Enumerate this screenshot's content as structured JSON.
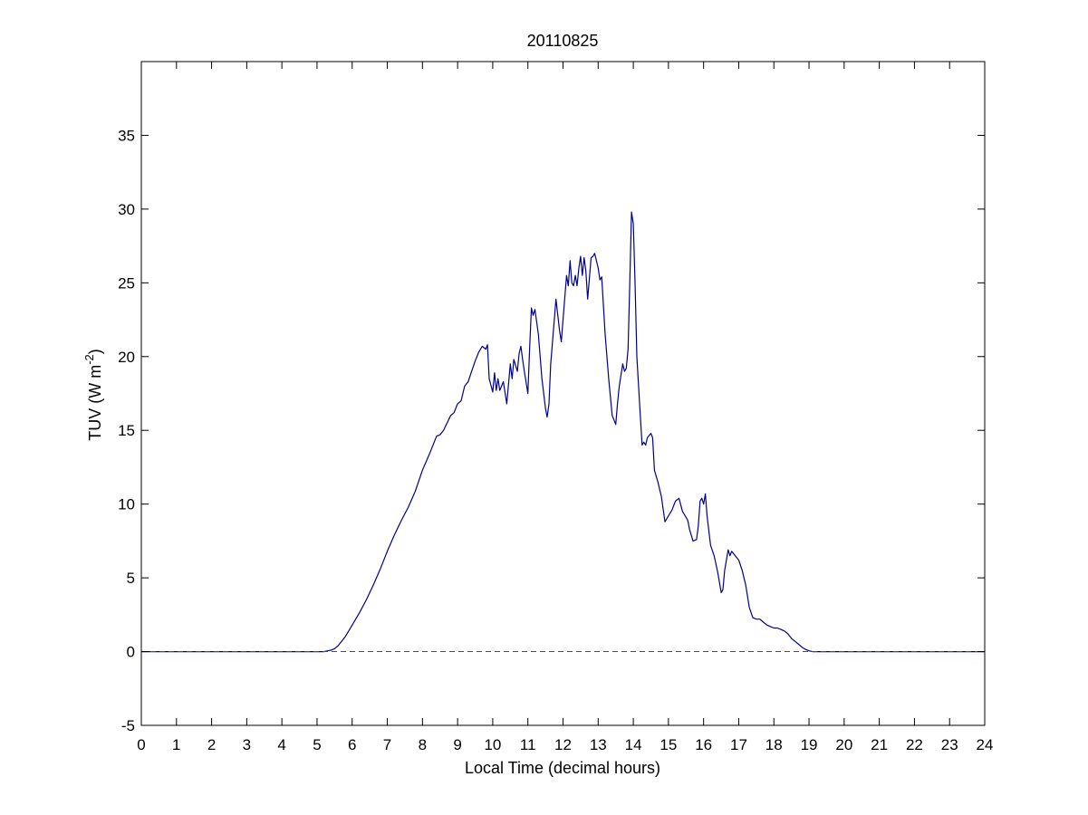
{
  "chart_data": {
    "type": "line",
    "title": "20110825",
    "xlabel": "Local Time (decimal hours)",
    "ylabel": "TUV (W m",
    "ylabel_superscript": "-2",
    "ylabel_suffix": ")",
    "xlim": [
      0,
      24
    ],
    "ylim": [
      -5,
      40
    ],
    "xticks": [
      0,
      1,
      2,
      3,
      4,
      5,
      6,
      7,
      8,
      9,
      10,
      11,
      12,
      13,
      14,
      15,
      16,
      17,
      18,
      19,
      20,
      21,
      22,
      23,
      24
    ],
    "yticks": [
      -5,
      0,
      5,
      10,
      15,
      20,
      25,
      30,
      35
    ],
    "grid": false,
    "colors": {
      "series": "#00008b",
      "reference": "#ff0000"
    },
    "series": [
      {
        "style": "solid",
        "x": [
          0,
          5.2,
          5.3,
          5.4,
          5.5,
          5.6,
          5.7,
          5.8,
          5.9,
          6.0,
          6.2,
          6.4,
          6.6,
          6.8,
          7.0,
          7.2,
          7.4,
          7.6,
          7.8,
          8.0,
          8.2,
          8.4,
          8.5,
          8.6,
          8.7,
          8.8,
          8.9,
          9.0,
          9.1,
          9.2,
          9.3,
          9.4,
          9.5,
          9.6,
          9.7,
          9.8,
          9.85,
          9.9,
          10.0,
          10.05,
          10.1,
          10.15,
          10.2,
          10.3,
          10.4,
          10.5,
          10.55,
          10.6,
          10.7,
          10.75,
          10.8,
          10.85,
          10.9,
          11.0,
          11.05,
          11.1,
          11.15,
          11.2,
          11.3,
          11.4,
          11.5,
          11.55,
          11.6,
          11.65,
          11.7,
          11.8,
          11.9,
          11.95,
          12.0,
          12.1,
          12.15,
          12.2,
          12.25,
          12.3,
          12.35,
          12.4,
          12.45,
          12.5,
          12.55,
          12.6,
          12.65,
          12.7,
          12.75,
          12.8,
          12.85,
          12.9,
          13.0,
          13.05,
          13.1,
          13.2,
          13.3,
          13.4,
          13.5,
          13.55,
          13.6,
          13.7,
          13.75,
          13.8,
          13.85,
          13.9,
          13.95,
          14.0,
          14.05,
          14.1,
          14.2,
          14.25,
          14.3,
          14.35,
          14.4,
          14.5,
          14.55,
          14.6,
          14.7,
          14.8,
          14.9,
          15.0,
          15.1,
          15.2,
          15.3,
          15.4,
          15.5,
          15.55,
          15.6,
          15.7,
          15.8,
          15.85,
          15.9,
          15.95,
          16.0,
          16.05,
          16.1,
          16.2,
          16.3,
          16.4,
          16.5,
          16.55,
          16.6,
          16.7,
          16.75,
          16.8,
          16.9,
          17.0,
          17.1,
          17.2,
          17.3,
          17.4,
          17.5,
          17.6,
          17.7,
          17.8,
          17.9,
          18.0,
          18.1,
          18.2,
          18.3,
          18.4,
          18.5,
          18.6,
          18.7,
          18.8,
          18.9,
          19.0,
          19.1,
          19.2,
          24
        ],
        "y": [
          0,
          0,
          0.05,
          0.1,
          0.2,
          0.4,
          0.7,
          1.0,
          1.4,
          1.8,
          2.6,
          3.5,
          4.5,
          5.6,
          6.8,
          7.9,
          8.9,
          9.8,
          10.9,
          12.3,
          13.4,
          14.6,
          14.7,
          15.0,
          15.5,
          16.0,
          16.2,
          16.8,
          17.0,
          18.0,
          18.3,
          19.0,
          19.7,
          20.3,
          20.7,
          20.5,
          20.8,
          18.5,
          17.6,
          18.9,
          17.7,
          18.5,
          17.7,
          18.3,
          16.8,
          19.5,
          18.5,
          19.8,
          19.0,
          20.2,
          20.7,
          19.8,
          19.0,
          17.5,
          20.5,
          23.3,
          22.8,
          23.2,
          21.5,
          18.5,
          16.5,
          15.9,
          16.8,
          19.5,
          21.0,
          23.9,
          21.8,
          21.0,
          22.5,
          25.5,
          24.8,
          26.5,
          25.0,
          24.8,
          25.5,
          24.8,
          26.0,
          26.8,
          25.5,
          26.7,
          25.8,
          23.9,
          25.3,
          26.7,
          26.8,
          27.0,
          26.0,
          25.2,
          25.4,
          21.5,
          18.5,
          16.0,
          15.4,
          16.8,
          18.0,
          19.5,
          19.0,
          19.2,
          20.5,
          25.0,
          29.8,
          29.0,
          25.0,
          20.0,
          16.0,
          14.0,
          14.2,
          14.0,
          14.5,
          14.8,
          14.5,
          12.3,
          11.5,
          10.5,
          8.8,
          9.2,
          9.6,
          10.2,
          10.4,
          9.5,
          9.1,
          8.9,
          8.3,
          7.5,
          7.6,
          8.5,
          10.2,
          10.4,
          10.0,
          10.7,
          9.2,
          7.2,
          6.5,
          5.4,
          4.0,
          4.2,
          5.5,
          6.9,
          6.5,
          6.8,
          6.5,
          6.2,
          5.5,
          4.5,
          3.0,
          2.3,
          2.2,
          2.2,
          2.0,
          1.8,
          1.7,
          1.6,
          1.6,
          1.5,
          1.4,
          1.2,
          0.9,
          0.7,
          0.5,
          0.3,
          0.15,
          0.05,
          0,
          0,
          0
        ]
      },
      {
        "style": "dashed",
        "x": [
          0,
          24
        ],
        "y": [
          0,
          0
        ]
      }
    ]
  }
}
